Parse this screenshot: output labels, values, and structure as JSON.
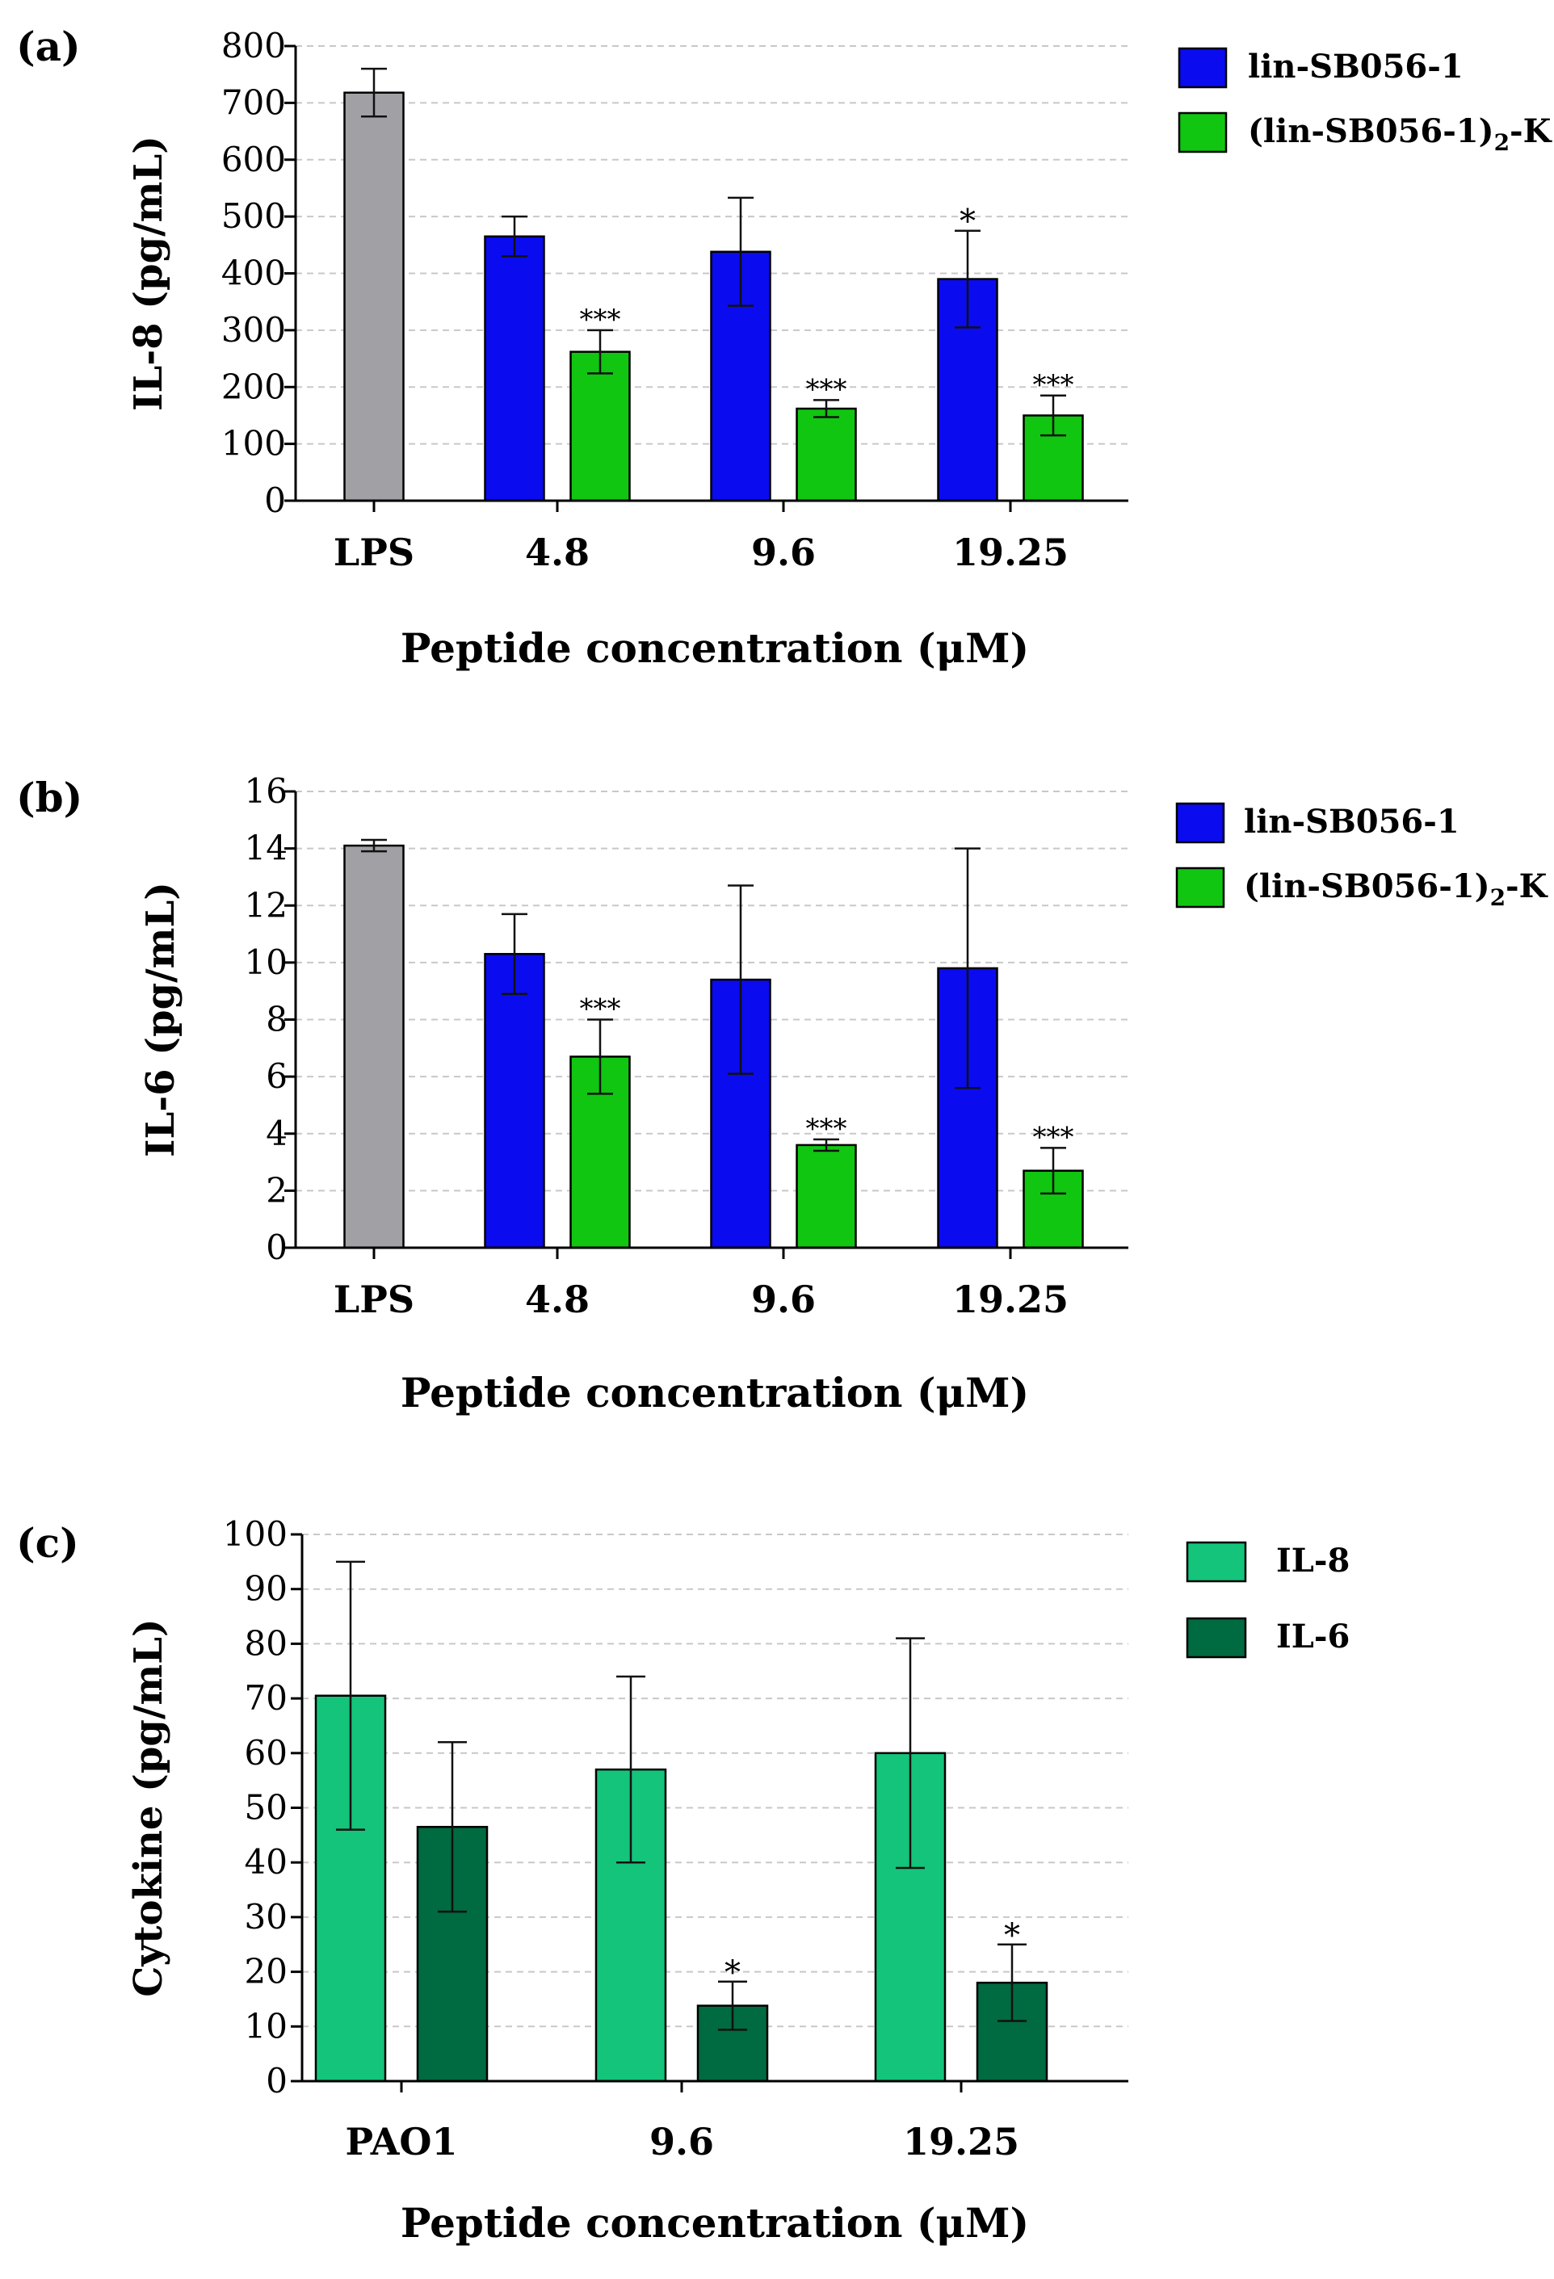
{
  "chart_data": [
    {
      "panel_label": "(a)",
      "type": "bar",
      "ylabel": "IL-8 (pg/mL)",
      "xlabel": "Peptide concentration (μM)",
      "ylim": [
        0,
        800
      ],
      "yticks": [
        0,
        100,
        200,
        300,
        400,
        500,
        600,
        700,
        800
      ],
      "grid": true,
      "categories": [
        "LPS",
        "4.8",
        "9.6",
        "19.25"
      ],
      "legend_position": "top-right",
      "series": [
        {
          "name": "LPS",
          "legend": false,
          "color": "#a1a1a5",
          "values": [
            718,
            null,
            null,
            null
          ],
          "errors": [
            42,
            null,
            null,
            null
          ],
          "annotations": [
            "",
            null,
            null,
            null
          ]
        },
        {
          "name": "lin-SB056-1",
          "legend": true,
          "color": "#0b0bf0",
          "values": [
            null,
            465,
            438,
            390
          ],
          "errors": [
            null,
            35,
            95,
            85
          ],
          "annotations": [
            null,
            "",
            "",
            "*"
          ]
        },
        {
          "name": "(lin-SB056-1)2-K",
          "legend": true,
          "color": "#11c611",
          "values": [
            null,
            262,
            162,
            150
          ],
          "errors": [
            null,
            38,
            15,
            35
          ],
          "annotations": [
            null,
            "***",
            "***",
            "***"
          ]
        }
      ],
      "legend_items": [
        {
          "label": "lin-SB056-1",
          "color": "#0b0bf0"
        },
        {
          "label": "(lin-SB056-1)",
          "sub": "2",
          "suffix": "-K",
          "color": "#11c611"
        }
      ]
    },
    {
      "panel_label": "(b)",
      "type": "bar",
      "ylabel": "IL-6 (pg/mL)",
      "xlabel": "Peptide concentration (μM)",
      "ylim": [
        0,
        16
      ],
      "yticks": [
        0,
        2,
        4,
        6,
        8,
        10,
        12,
        14,
        16
      ],
      "grid": true,
      "categories": [
        "LPS",
        "4.8",
        "9.6",
        "19.25"
      ],
      "legend_position": "top-right",
      "series": [
        {
          "name": "LPS",
          "legend": false,
          "color": "#a1a1a5",
          "values": [
            14.1,
            null,
            null,
            null
          ],
          "errors": [
            0.2,
            null,
            null,
            null
          ],
          "annotations": [
            "",
            null,
            null,
            null
          ]
        },
        {
          "name": "lin-SB056-1",
          "legend": true,
          "color": "#0b0bf0",
          "values": [
            null,
            10.3,
            9.4,
            9.8
          ],
          "errors": [
            null,
            1.4,
            3.3,
            4.2
          ],
          "annotations": [
            null,
            "",
            "",
            ""
          ]
        },
        {
          "name": "(lin-SB056-1)2-K",
          "legend": true,
          "color": "#11c611",
          "values": [
            null,
            6.7,
            3.6,
            2.7
          ],
          "errors": [
            null,
            1.3,
            0.2,
            0.8
          ],
          "annotations": [
            null,
            "***",
            "***",
            "***"
          ]
        }
      ],
      "legend_items": [
        {
          "label": "lin-SB056-1",
          "color": "#0b0bf0"
        },
        {
          "label": "(lin-SB056-1)",
          "sub": "2",
          "suffix": "-K",
          "color": "#11c611"
        }
      ]
    },
    {
      "panel_label": "(c)",
      "type": "bar",
      "ylabel": "Cytokine (pg/mL)",
      "xlabel": "Peptide concentration (μM)",
      "ylim": [
        0,
        100
      ],
      "yticks": [
        0,
        10,
        20,
        30,
        40,
        50,
        60,
        70,
        80,
        90,
        100
      ],
      "grid": true,
      "categories": [
        "PAO1",
        "9.6",
        "19.25"
      ],
      "legend_position": "top-right",
      "series": [
        {
          "name": "IL-8",
          "legend": true,
          "color": "#13c47a",
          "values": [
            70.5,
            57,
            60
          ],
          "errors": [
            24.5,
            17,
            21
          ],
          "annotations": [
            "",
            "",
            ""
          ]
        },
        {
          "name": "IL-6",
          "legend": true,
          "color": "#006a40",
          "values": [
            46.5,
            13.8,
            18
          ],
          "errors": [
            15.5,
            4.4,
            7
          ],
          "annotations": [
            "",
            "*",
            "*"
          ]
        }
      ],
      "legend_items": [
        {
          "label": "IL-8",
          "color": "#13c47a"
        },
        {
          "label": "IL-6",
          "color": "#006a40"
        }
      ]
    }
  ]
}
